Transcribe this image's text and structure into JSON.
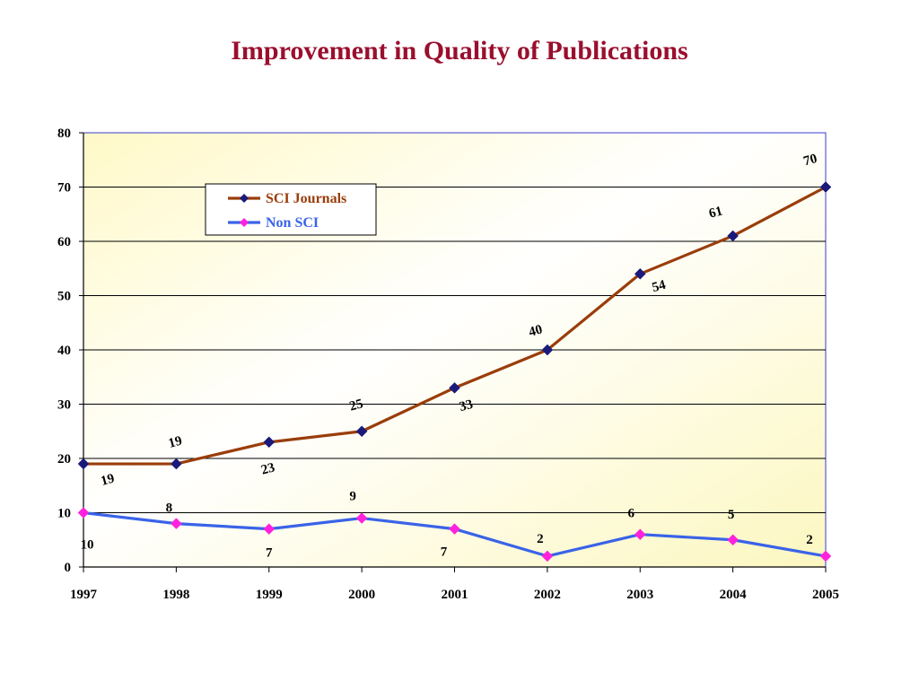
{
  "title": "Improvement in Quality of Publications",
  "chart_data": {
    "type": "line",
    "title": "Improvement in Quality of Publications",
    "x": [
      "1997",
      "1998",
      "1999",
      "2000",
      "2001",
      "2002",
      "2003",
      "2004",
      "2005"
    ],
    "xlabel": "",
    "ylabel": "",
    "ylim": [
      0,
      80
    ],
    "yticks": [
      0,
      10,
      20,
      30,
      40,
      50,
      60,
      70,
      80
    ],
    "grid": true,
    "legend_position": "top-left",
    "series": [
      {
        "name": "SCI Journals",
        "color": "#9a3d0a",
        "marker_color": "#1a1a7a",
        "values": [
          19,
          19,
          23,
          25,
          33,
          40,
          54,
          61,
          70
        ]
      },
      {
        "name": "Non SCI",
        "color": "#3a63e8",
        "marker_color": "#ff22dd",
        "values": [
          10,
          8,
          7,
          9,
          7,
          2,
          6,
          5,
          2
        ]
      }
    ]
  }
}
